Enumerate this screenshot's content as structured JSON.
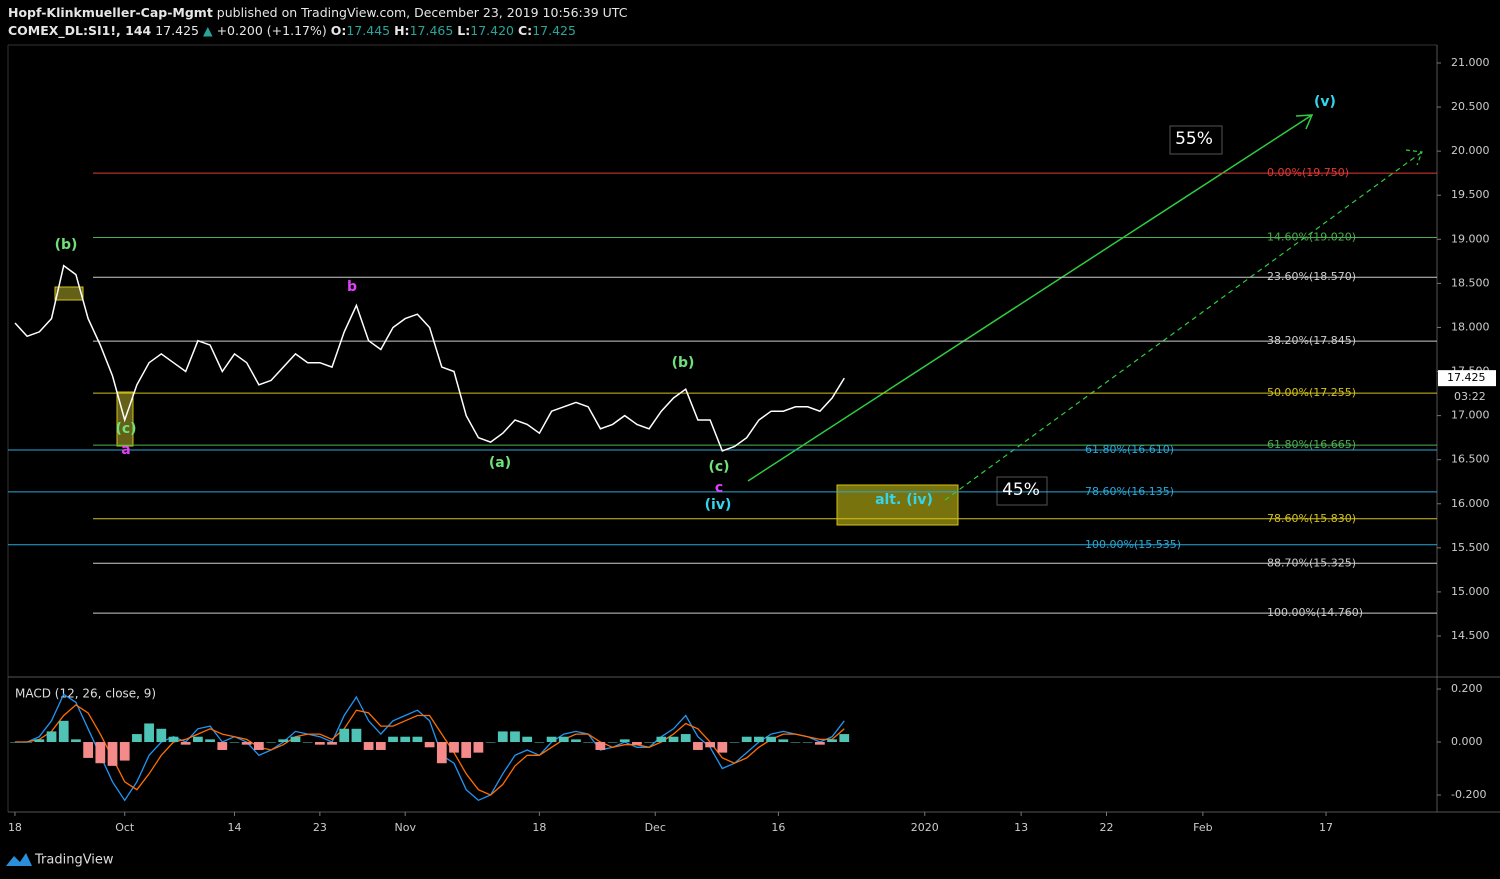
{
  "header": {
    "author": "Hopf-Klinkmueller-Cap-Mgmt",
    "published": "published on TradingView.com, December 23, 2019 10:56:39 UTC",
    "symbol": "COMEX_DL:SI1!, 144",
    "last": "17.425",
    "arrow": "▲",
    "change": "+0.200 (+1.17%)",
    "o_label": "O:",
    "o": "17.445",
    "h_label": "H:",
    "h": "17.465",
    "l_label": "L:",
    "l": "17.420",
    "c_label": "C:",
    "c": "17.425"
  },
  "chart_data": [
    {
      "type": "line",
      "color": "#ffffff",
      "x": [
        0,
        1,
        2,
        3,
        4,
        5,
        6,
        7,
        8,
        9,
        10,
        11,
        12,
        13,
        14,
        15,
        16,
        17,
        18,
        19,
        20,
        21,
        22,
        23,
        24,
        25,
        26,
        27,
        28,
        29,
        30,
        31,
        32,
        33,
        34,
        35,
        36,
        37,
        38,
        39,
        40,
        41,
        42,
        43,
        44,
        45,
        46,
        47,
        48,
        49,
        50,
        51,
        52,
        53,
        54,
        55,
        56,
        57,
        58,
        59,
        60,
        61,
        62,
        63,
        64,
        65,
        66,
        67,
        68
      ],
      "values": [
        18.05,
        17.9,
        17.95,
        18.1,
        18.7,
        18.6,
        18.1,
        17.8,
        17.45,
        16.95,
        17.35,
        17.6,
        17.7,
        17.6,
        17.5,
        17.85,
        17.8,
        17.5,
        17.7,
        17.6,
        17.35,
        17.4,
        17.55,
        17.7,
        17.6,
        17.6,
        17.55,
        17.95,
        18.25,
        17.85,
        17.75,
        18.0,
        18.1,
        18.15,
        18.0,
        17.55,
        17.5,
        17.0,
        16.75,
        16.7,
        16.8,
        16.95,
        16.9,
        16.8,
        17.05,
        17.1,
        17.15,
        17.1,
        16.85,
        16.9,
        17.0,
        16.9,
        16.85,
        17.05,
        17.2,
        17.3,
        16.95,
        16.95,
        16.6,
        16.65,
        16.75,
        16.95,
        17.05,
        17.05,
        17.1,
        17.1,
        17.05,
        17.2,
        17.425
      ],
      "xlim": [
        -0.57,
        116.6
      ],
      "xticks": [
        {
          "value": 0,
          "label": "18"
        },
        {
          "value": 9,
          "label": "Oct"
        },
        {
          "value": 18,
          "label": "14"
        },
        {
          "value": 25,
          "label": "23"
        },
        {
          "value": 32,
          "label": "Nov"
        },
        {
          "value": 43,
          "label": "18"
        },
        {
          "value": 52.5,
          "label": "Dec"
        },
        {
          "value": 62.6,
          "label": "16"
        },
        {
          "value": 74.6,
          "label": "2020"
        },
        {
          "value": 82.5,
          "label": "13"
        },
        {
          "value": 89.5,
          "label": "22"
        },
        {
          "value": 97.4,
          "label": "Feb"
        },
        {
          "value": 107.5,
          "label": "17"
        }
      ],
      "ylim": [
        14.035,
        21.204
      ],
      "yticks": [
        {
          "value": 21,
          "label": "21.000"
        },
        {
          "value": 20.5,
          "label": "20.500"
        },
        {
          "value": 20,
          "label": "20.000"
        },
        {
          "value": 19.5,
          "label": "19.500"
        },
        {
          "value": 19,
          "label": "19.000"
        },
        {
          "value": 18.5,
          "label": "18.500"
        },
        {
          "value": 18,
          "label": "18.000"
        },
        {
          "value": 17.5,
          "label": "17.500"
        },
        {
          "value": 17,
          "label": "17.000"
        },
        {
          "value": 16.5,
          "label": "16.500"
        },
        {
          "value": 16,
          "label": "16.000"
        },
        {
          "value": 15.5,
          "label": "15.500"
        },
        {
          "value": 15,
          "label": "15.000"
        },
        {
          "value": 14.5,
          "label": "14.500"
        }
      ],
      "levels": [
        {
          "label": "0.00%(19.750)",
          "price": 19.75,
          "color": "#e53935"
        },
        {
          "label": "14.60%(19.020)",
          "price": 19.02,
          "color": "#4caf50"
        },
        {
          "label": "23.60%(18.570)",
          "price": 18.57,
          "color": "#cccccc"
        },
        {
          "label": "38.20%(17.845)",
          "price": 17.845,
          "color": "#cccccc"
        },
        {
          "label": "50.00%(17.255)",
          "price": 17.255,
          "color": "#d4c21a"
        },
        {
          "label": "61.80%(16.665)",
          "price": 16.665,
          "color": "#4caf50"
        },
        {
          "label": "61.80%(16.610)",
          "price": 16.61,
          "color": "#29a8d8"
        },
        {
          "label": "78.60%(16.135)",
          "price": 16.135,
          "color": "#29a8d8"
        },
        {
          "label": "78.60%(15.830)",
          "price": 15.83,
          "color": "#d4c21a"
        },
        {
          "label": "100.00%(15.535)",
          "price": 15.535,
          "color": "#29a8d8"
        },
        {
          "label": "88.70%(15.325)",
          "price": 15.325,
          "color": "#cccccc"
        },
        {
          "label": "100.00%(14.760)",
          "price": 14.76,
          "color": "#cccccc"
        }
      ],
      "annotations": [
        {
          "text": "(b)",
          "color": "#6fe07a"
        },
        {
          "text": "(c)",
          "color": "#6fe07a"
        },
        {
          "text": "a",
          "color": "#e040fb"
        },
        {
          "text": "b",
          "color": "#e040fb"
        },
        {
          "text": "(a)",
          "color": "#6fe07a"
        },
        {
          "text": "(b)",
          "color": "#6fe07a"
        },
        {
          "text": "(c)",
          "color": "#6fe07a"
        },
        {
          "text": "c",
          "color": "#e040fb"
        },
        {
          "text": "(iv)",
          "color": "#33d6ee"
        },
        {
          "text": "(v)",
          "color": "#33d6ee"
        },
        {
          "text": "alt. (iv)",
          "color": "#33d6ee"
        },
        {
          "text": "55%",
          "color": "#ffffff"
        },
        {
          "text": "45%",
          "color": "#ffffff"
        }
      ]
    },
    {
      "type": "macd",
      "title": "MACD (12, 26, close, 9)",
      "x": [
        0,
        1,
        2,
        3,
        4,
        5,
        6,
        7,
        8,
        9,
        10,
        11,
        12,
        13,
        14,
        15,
        16,
        17,
        18,
        19,
        20,
        21,
        22,
        23,
        24,
        25,
        26,
        27,
        28,
        29,
        30,
        31,
        32,
        33,
        34,
        35,
        36,
        37,
        38,
        39,
        40,
        41,
        42,
        43,
        44,
        45,
        46,
        47,
        48,
        49,
        50,
        51,
        52,
        53,
        54,
        55,
        56,
        57,
        58,
        59,
        60,
        61,
        62,
        63,
        64,
        65,
        66,
        67,
        68
      ],
      "series": [
        {
          "type": "line",
          "color": "#2196f3",
          "values": [
            0.0,
            0.0,
            0.02,
            0.08,
            0.18,
            0.15,
            0.05,
            -0.05,
            -0.15,
            -0.22,
            -0.15,
            -0.05,
            0.0,
            0.02,
            0.0,
            0.05,
            0.06,
            0.0,
            0.02,
            0.0,
            -0.05,
            -0.03,
            0.0,
            0.04,
            0.03,
            0.02,
            0.0,
            0.1,
            0.17,
            0.08,
            0.03,
            0.08,
            0.1,
            0.12,
            0.08,
            -0.05,
            -0.08,
            -0.18,
            -0.22,
            -0.2,
            -0.12,
            -0.05,
            -0.03,
            -0.05,
            0.0,
            0.03,
            0.04,
            0.03,
            -0.03,
            -0.02,
            0.0,
            -0.02,
            -0.02,
            0.02,
            0.05,
            0.1,
            0.02,
            -0.02,
            -0.1,
            -0.08,
            -0.04,
            0.0,
            0.03,
            0.04,
            0.03,
            0.02,
            0.0,
            0.02,
            0.08
          ]
        },
        {
          "type": "line",
          "color": "#ff6d00",
          "values": [
            0.0,
            0.0,
            0.01,
            0.04,
            0.1,
            0.14,
            0.11,
            0.03,
            -0.06,
            -0.15,
            -0.18,
            -0.12,
            -0.05,
            0.0,
            0.01,
            0.03,
            0.05,
            0.03,
            0.02,
            0.01,
            -0.02,
            -0.03,
            -0.01,
            0.02,
            0.03,
            0.03,
            0.01,
            0.05,
            0.12,
            0.11,
            0.06,
            0.06,
            0.08,
            0.1,
            0.1,
            0.03,
            -0.04,
            -0.12,
            -0.18,
            -0.2,
            -0.16,
            -0.09,
            -0.05,
            -0.05,
            -0.02,
            0.01,
            0.03,
            0.03,
            0.0,
            -0.02,
            -0.01,
            -0.01,
            -0.02,
            0.0,
            0.03,
            0.07,
            0.05,
            0.0,
            -0.06,
            -0.08,
            -0.06,
            -0.02,
            0.01,
            0.03,
            0.03,
            0.02,
            0.01,
            0.01,
            0.05
          ]
        },
        {
          "type": "histogram",
          "color": "#4fc3b5",
          "negative_color": "#f48a8a",
          "values": [
            0,
            0,
            0.01,
            0.04,
            0.08,
            0.01,
            -0.06,
            -0.08,
            -0.09,
            -0.07,
            0.03,
            0.07,
            0.05,
            0.02,
            -0.01,
            0.02,
            0.01,
            -0.03,
            0,
            -0.01,
            -0.03,
            0,
            0.01,
            0.02,
            0,
            -0.01,
            -0.01,
            0.05,
            0.05,
            -0.03,
            -0.03,
            0.02,
            0.02,
            0.02,
            -0.02,
            -0.08,
            -0.04,
            -0.06,
            -0.04,
            0,
            0.04,
            0.04,
            0.02,
            0,
            0.02,
            0.02,
            0.01,
            0,
            -0.03,
            0,
            0.01,
            -0.01,
            0,
            0.02,
            0.02,
            0.03,
            -0.03,
            -0.02,
            -0.04,
            0,
            0.02,
            0.02,
            0.02,
            0.01,
            0,
            0,
            -0.01,
            0.01,
            0.03
          ]
        }
      ],
      "xlim": [
        -0.57,
        116.6
      ],
      "ylim": [
        -0.264,
        0.2415
      ],
      "yticks": [
        {
          "value": 0.2,
          "label": "0.200"
        },
        {
          "value": 0,
          "label": "0.000"
        },
        {
          "value": -0.2,
          "label": "-0.200"
        }
      ]
    }
  ],
  "price_tag": {
    "price": "17.425",
    "countdown": "03:22"
  },
  "footer": {
    "brand": "TradingView"
  }
}
